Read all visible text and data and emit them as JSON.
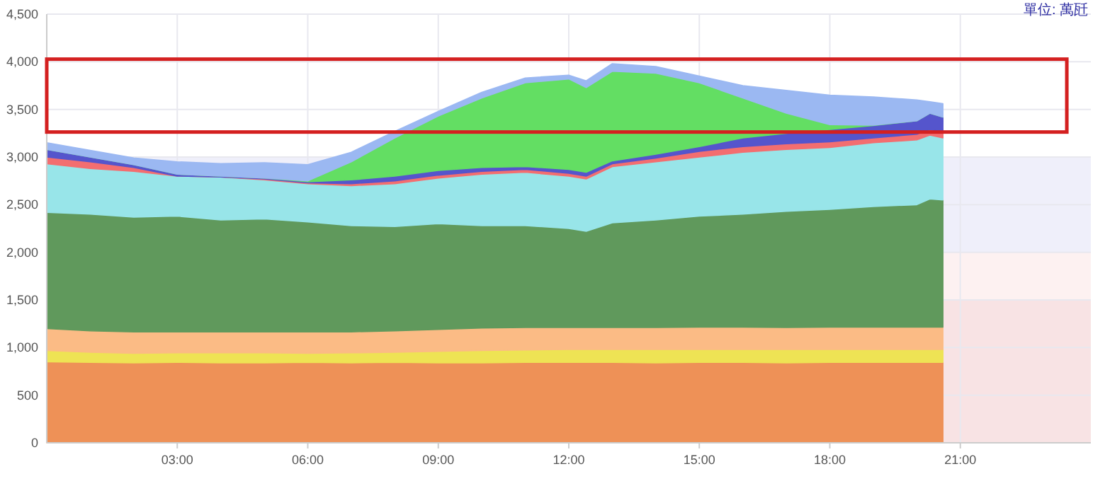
{
  "chart_data": {
    "type": "area",
    "stacked": true,
    "grid": true,
    "annotations": [
      "單位: 萬瓩"
    ],
    "x": [
      0,
      1,
      2,
      3,
      4,
      5,
      6,
      7,
      8,
      9,
      10,
      11,
      12,
      12.4,
      13,
      14,
      15,
      16,
      17,
      18,
      19,
      20,
      20.3,
      20.6
    ],
    "xlim": [
      0,
      24
    ],
    "xticks": [
      {
        "value": 3,
        "label": "03:00"
      },
      {
        "value": 6,
        "label": "06:00"
      },
      {
        "value": 9,
        "label": "09:00"
      },
      {
        "value": 12,
        "label": "12:00"
      },
      {
        "value": 15,
        "label": "15:00"
      },
      {
        "value": 18,
        "label": "18:00"
      },
      {
        "value": 21,
        "label": "21:00"
      }
    ],
    "ylim": [
      0,
      4500
    ],
    "yticks": [
      0,
      500,
      {
        "value": 1000,
        "label": "1,000"
      },
      {
        "value": 1500,
        "label": "1,500"
      },
      {
        "value": 2000,
        "label": "2,000"
      },
      {
        "value": 2500,
        "label": "2,500"
      },
      {
        "value": 3000,
        "label": "3,000"
      },
      {
        "value": 3500,
        "label": "3,500"
      },
      {
        "value": 4000,
        "label": "4,000"
      },
      {
        "value": 4500,
        "label": "4,500"
      }
    ],
    "bands": [
      {
        "axis": "y",
        "from": 0,
        "to": 1500,
        "color": "#f8e3e4"
      },
      {
        "axis": "y",
        "from": 1500,
        "to": 2000,
        "color": "#fdf1f1"
      },
      {
        "axis": "y",
        "from": 2000,
        "to": 3000,
        "color": "#efeffa"
      }
    ],
    "series": [
      {
        "color": "#ee9157",
        "values": [
          850,
          845,
          840,
          845,
          840,
          840,
          845,
          840,
          845,
          840,
          840,
          845,
          845,
          845,
          845,
          840,
          845,
          845,
          840,
          845,
          845,
          845,
          845,
          845
        ]
      },
      {
        "color": "#eee354",
        "values": [
          120,
          105,
          100,
          100,
          105,
          105,
          95,
          105,
          105,
          120,
          130,
          130,
          135,
          135,
          135,
          140,
          135,
          135,
          140,
          135,
          135,
          135,
          135,
          135
        ]
      },
      {
        "color": "#fbbb85",
        "values": [
          230,
          225,
          225,
          220,
          220,
          220,
          225,
          220,
          225,
          230,
          235,
          235,
          230,
          230,
          230,
          230,
          235,
          235,
          230,
          235,
          235,
          235,
          235,
          235
        ]
      },
      {
        "color": "#60995c",
        "values": [
          1220,
          1225,
          1205,
          1215,
          1175,
          1185,
          1155,
          1115,
          1095,
          1110,
          1075,
          1070,
          1040,
          1010,
          1100,
          1130,
          1165,
          1185,
          1220,
          1235,
          1265,
          1285,
          1345,
          1335
        ]
      },
      {
        "color": "#98e5e9",
        "values": [
          510,
          480,
          480,
          420,
          450,
          410,
          400,
          420,
          450,
          480,
          540,
          560,
          550,
          550,
          590,
          610,
          620,
          650,
          650,
          650,
          670,
          680,
          670,
          650
        ]
      },
      {
        "color": "#f36e70",
        "values": [
          70,
          70,
          40,
          0,
          0,
          10,
          10,
          20,
          30,
          30,
          30,
          30,
          30,
          30,
          30,
          40,
          60,
          60,
          60,
          60,
          50,
          60,
          60,
          60
        ]
      },
      {
        "color": "#5555cc",
        "values": [
          80,
          50,
          30,
          20,
          10,
          10,
          10,
          40,
          50,
          50,
          40,
          30,
          40,
          40,
          30,
          40,
          50,
          90,
          110,
          130,
          130,
          140,
          170,
          160
        ]
      },
      {
        "color": "#63de63",
        "values": [
          0,
          0,
          0,
          0,
          0,
          0,
          10,
          190,
          400,
          570,
          730,
          880,
          950,
          890,
          940,
          850,
          670,
          420,
          210,
          50,
          5,
          0,
          0,
          0
        ]
      },
      {
        "color": "#9bb8f2",
        "values": [
          70,
          70,
          70,
          130,
          130,
          160,
          170,
          100,
          70,
          50,
          60,
          50,
          40,
          70,
          80,
          70,
          70,
          130,
          240,
          310,
          295,
          220,
          120,
          140
        ]
      }
    ]
  }
}
